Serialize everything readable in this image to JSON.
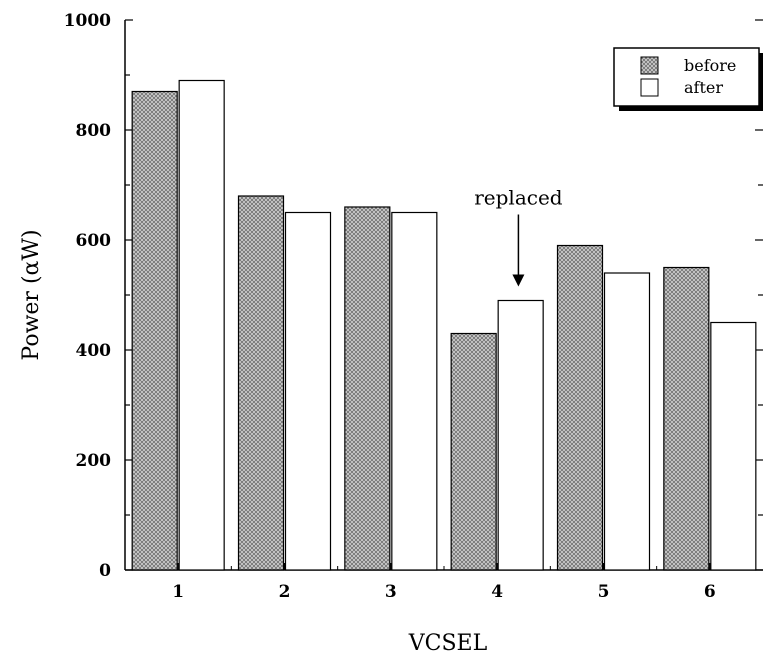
{
  "chart_data": {
    "type": "bar",
    "title": "",
    "xlabel": "VCSEL",
    "ylabel": "Power (αW)",
    "categories": [
      "1",
      "2",
      "3",
      "4",
      "5",
      "6"
    ],
    "series": [
      {
        "name": "before",
        "values": [
          870,
          680,
          660,
          430,
          590,
          550
        ],
        "pattern": "crosshatch"
      },
      {
        "name": "after",
        "values": [
          890,
          650,
          650,
          490,
          540,
          450
        ],
        "pattern": "none"
      }
    ],
    "ylim": [
      0,
      1000
    ],
    "yticks": [
      "0",
      "200",
      "400",
      "600",
      "800",
      "1000"
    ],
    "grid": false,
    "legend_position": "top-right",
    "annotation": {
      "text": "replaced",
      "category": "4",
      "series": "after"
    },
    "colors": {
      "before_fill": "#c8c8c8",
      "after_fill": "#ffffff",
      "stroke": "#000000"
    }
  }
}
